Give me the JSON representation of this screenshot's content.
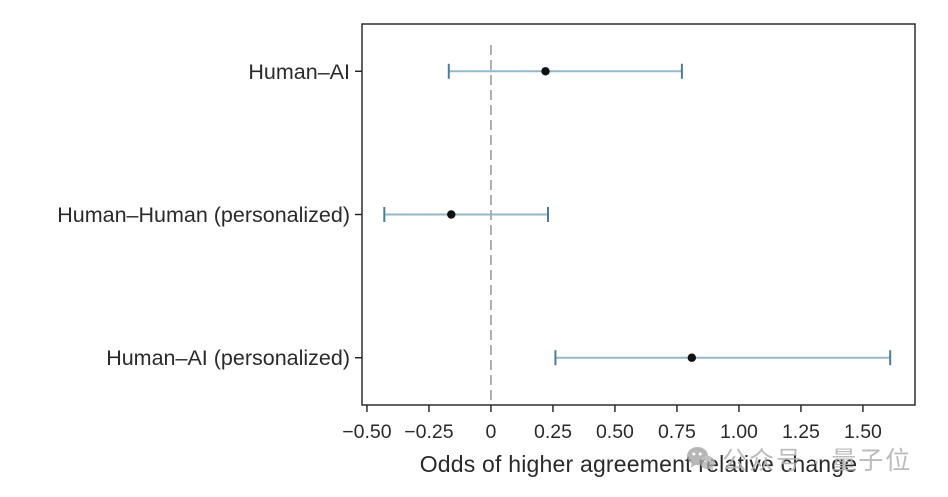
{
  "watermark": {
    "text": "公众号 · 量子位",
    "icon": "wechat-logo-icon"
  },
  "chart_data": {
    "type": "scatter",
    "subtype": "forest_plot_with_error_bars",
    "title": "",
    "xlabel": "Odds of higher agreement relative change",
    "ylabel": "",
    "grid": false,
    "legend": null,
    "categories": [
      "Human–AI",
      "Human–Human (personalized)",
      "Human–AI (personalized)"
    ],
    "series": [
      {
        "name": "estimate",
        "values": [
          0.22,
          -0.16,
          0.81
        ]
      },
      {
        "name": "ci_low",
        "values": [
          -0.17,
          -0.43,
          0.26
        ]
      },
      {
        "name": "ci_high",
        "values": [
          0.77,
          0.23,
          1.61
        ]
      }
    ],
    "reference_line_x": 0,
    "xlim": [
      -0.52,
      1.71
    ],
    "ylim": [
      -0.33,
      2.33
    ],
    "xticks": {
      "values": [
        -0.5,
        -0.25,
        0,
        0.25,
        0.5,
        0.75,
        1.0,
        1.25,
        1.5
      ],
      "labels": [
        "−0.50",
        "−0.25",
        "0",
        "0.25",
        "0.50",
        "0.75",
        "1.00",
        "1.25",
        "1.50"
      ]
    },
    "colors": {
      "error_line": "#93b9ca",
      "error_cap": "#4d7d95",
      "point": "#111111",
      "reference": "#a8a8a8",
      "frame": "#1f1f1f",
      "text": "#2a2a2a"
    }
  }
}
